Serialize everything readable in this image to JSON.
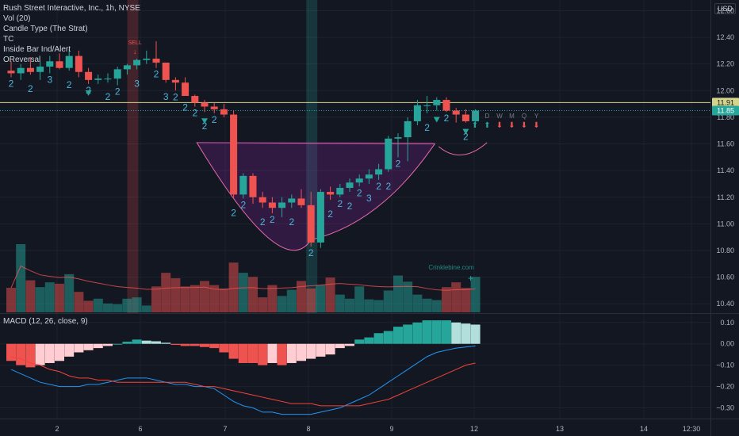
{
  "header": {
    "symbol_line": "Rush Street Interactive, Inc., 1h, NYSE",
    "indicators": [
      "Vol (20)",
      "Candle Type (The Strat)",
      "TC",
      "Inside Bar Ind/Alert",
      "OReversal"
    ],
    "currency": "USD"
  },
  "macd": {
    "label": "MACD (12, 26, close, 9)"
  },
  "watermark": "Crinklebine.com",
  "colors": {
    "bg": "#131722",
    "up": "#26a69a",
    "down": "#ef5350",
    "grid": "#1e222d",
    "resistance": "#d4d48a",
    "macd": "#2196f3",
    "signal": "#f44336"
  },
  "chart_data": [
    {
      "type": "candlestick",
      "title": "Rush Street Interactive, Inc., 1h, NYSE",
      "x_tick_labels": [
        "2",
        "6",
        "7",
        "8",
        "9",
        "12",
        "13",
        "14",
        "12:30"
      ],
      "y_ticks": [
        10.4,
        10.6,
        10.8,
        11.0,
        11.2,
        11.4,
        11.6,
        11.8,
        12.0,
        12.2,
        12.4,
        12.6
      ],
      "ylim": [
        10.33,
        12.68
      ],
      "price_labels": [
        {
          "value": 11.91,
          "label": "11.91",
          "color": "#d4d48a"
        },
        {
          "value": 11.85,
          "label": "11.85",
          "color": "#26a69a"
        }
      ],
      "candles": [
        {
          "o": 12.15,
          "h": 12.22,
          "l": 12.1,
          "c": 12.13
        },
        {
          "o": 12.13,
          "h": 12.2,
          "l": 12.08,
          "c": 12.17
        },
        {
          "o": 12.17,
          "h": 12.25,
          "l": 12.12,
          "c": 12.14
        },
        {
          "o": 12.14,
          "h": 12.22,
          "l": 12.08,
          "c": 12.18
        },
        {
          "o": 12.18,
          "h": 12.26,
          "l": 12.13,
          "c": 12.22
        },
        {
          "o": 12.22,
          "h": 12.28,
          "l": 12.16,
          "c": 12.17
        },
        {
          "o": 12.17,
          "h": 12.31,
          "l": 12.15,
          "c": 12.26
        },
        {
          "o": 12.26,
          "h": 12.3,
          "l": 12.1,
          "c": 12.14
        },
        {
          "o": 12.14,
          "h": 12.17,
          "l": 12.05,
          "c": 12.08
        },
        {
          "o": 12.08,
          "h": 12.12,
          "l": 12.05,
          "c": 12.09
        },
        {
          "o": 12.09,
          "h": 12.13,
          "l": 12.06,
          "c": 12.09
        },
        {
          "o": 12.09,
          "h": 12.18,
          "l": 12.04,
          "c": 12.16
        },
        {
          "o": 12.16,
          "h": 12.2,
          "l": 12.12,
          "c": 12.19
        },
        {
          "o": 12.19,
          "h": 12.24,
          "l": 12.16,
          "c": 12.23
        },
        {
          "o": 12.23,
          "h": 12.3,
          "l": 12.2,
          "c": 12.24
        },
        {
          "o": 12.24,
          "h": 12.37,
          "l": 12.17,
          "c": 12.21
        },
        {
          "o": 12.21,
          "h": 12.2,
          "l": 12.06,
          "c": 12.08
        },
        {
          "o": 12.08,
          "h": 12.1,
          "l": 12.0,
          "c": 12.06
        },
        {
          "o": 12.06,
          "h": 12.1,
          "l": 11.98,
          "c": 11.96
        },
        {
          "o": 11.96,
          "h": 11.97,
          "l": 11.88,
          "c": 11.91
        },
        {
          "o": 11.91,
          "h": 11.93,
          "l": 11.84,
          "c": 11.88
        },
        {
          "o": 11.88,
          "h": 11.91,
          "l": 11.83,
          "c": 11.86
        },
        {
          "o": 11.86,
          "h": 11.9,
          "l": 11.8,
          "c": 11.82
        },
        {
          "o": 11.82,
          "h": 11.85,
          "l": 11.19,
          "c": 11.22
        },
        {
          "o": 11.22,
          "h": 11.38,
          "l": 11.19,
          "c": 11.36
        },
        {
          "o": 11.36,
          "h": 11.38,
          "l": 11.15,
          "c": 11.2
        },
        {
          "o": 11.2,
          "h": 11.24,
          "l": 11.12,
          "c": 11.16
        },
        {
          "o": 11.16,
          "h": 11.2,
          "l": 11.08,
          "c": 11.12
        },
        {
          "o": 11.12,
          "h": 11.2,
          "l": 11.05,
          "c": 11.16
        },
        {
          "o": 11.16,
          "h": 11.22,
          "l": 11.12,
          "c": 11.19
        },
        {
          "o": 11.19,
          "h": 11.26,
          "l": 11.12,
          "c": 11.14
        },
        {
          "o": 11.14,
          "h": 11.24,
          "l": 10.83,
          "c": 10.86
        },
        {
          "o": 10.86,
          "h": 11.26,
          "l": 10.82,
          "c": 11.24
        },
        {
          "o": 11.24,
          "h": 11.28,
          "l": 11.18,
          "c": 11.22
        },
        {
          "o": 11.22,
          "h": 11.3,
          "l": 11.2,
          "c": 11.27
        },
        {
          "o": 11.27,
          "h": 11.34,
          "l": 11.24,
          "c": 11.31
        },
        {
          "o": 11.31,
          "h": 11.37,
          "l": 11.28,
          "c": 11.34
        },
        {
          "o": 11.34,
          "h": 11.41,
          "l": 11.3,
          "c": 11.37
        },
        {
          "o": 11.37,
          "h": 11.45,
          "l": 11.33,
          "c": 11.41
        },
        {
          "o": 11.41,
          "h": 11.66,
          "l": 11.39,
          "c": 11.64
        },
        {
          "o": 11.64,
          "h": 11.68,
          "l": 11.5,
          "c": 11.65
        },
        {
          "o": 11.65,
          "h": 11.8,
          "l": 11.47,
          "c": 11.77
        },
        {
          "o": 11.77,
          "h": 11.93,
          "l": 11.74,
          "c": 11.89
        },
        {
          "o": 11.89,
          "h": 11.96,
          "l": 11.83,
          "c": 11.89
        },
        {
          "o": 11.89,
          "h": 11.95,
          "l": 11.85,
          "c": 11.93
        },
        {
          "o": 11.93,
          "h": 11.95,
          "l": 11.84,
          "c": 11.85
        },
        {
          "o": 11.85,
          "h": 11.87,
          "l": 11.76,
          "c": 11.82
        },
        {
          "o": 11.82,
          "h": 11.86,
          "l": 11.76,
          "c": 11.77
        },
        {
          "o": 11.77,
          "h": 11.86,
          "l": 11.76,
          "c": 11.85
        }
      ],
      "volume": [
        36,
        100,
        47,
        37,
        44,
        42,
        56,
        30,
        17,
        20,
        13,
        12,
        20,
        22,
        10,
        38,
        58,
        50,
        38,
        40,
        46,
        40,
        35,
        73,
        58,
        52,
        22,
        40,
        24,
        33,
        46,
        35,
        40,
        51,
        26,
        20,
        38,
        19,
        18,
        32,
        54,
        45,
        26,
        20,
        18,
        37,
        44,
        36,
        52
      ]
    },
    {
      "type": "bar",
      "title": "MACD (12, 26, close, 9)",
      "y_ticks": [
        -0.3,
        -0.2,
        -0.1,
        0.0,
        0.1
      ],
      "ylim": [
        -0.35,
        0.14
      ],
      "histogram": [
        -0.08,
        -0.1,
        -0.11,
        -0.1,
        -0.09,
        -0.08,
        -0.06,
        -0.04,
        -0.03,
        -0.02,
        -0.01,
        0.0,
        0.01,
        0.02,
        0.015,
        0.012,
        0.005,
        -0.005,
        -0.01,
        -0.01,
        -0.015,
        -0.02,
        -0.04,
        -0.07,
        -0.09,
        -0.09,
        -0.1,
        -0.09,
        -0.1,
        -0.09,
        -0.08,
        -0.07,
        -0.06,
        -0.05,
        -0.02,
        -0.01,
        0.02,
        0.03,
        0.05,
        0.06,
        0.08,
        0.09,
        0.1,
        0.11,
        0.11,
        0.11,
        0.1,
        0.095,
        0.09
      ],
      "series": [
        {
          "name": "MACD",
          "values": [
            -0.12,
            -0.14,
            -0.16,
            -0.18,
            -0.19,
            -0.2,
            -0.2,
            -0.2,
            -0.19,
            -0.19,
            -0.18,
            -0.17,
            -0.16,
            -0.16,
            -0.16,
            -0.17,
            -0.18,
            -0.19,
            -0.19,
            -0.2,
            -0.2,
            -0.21,
            -0.24,
            -0.27,
            -0.29,
            -0.3,
            -0.32,
            -0.32,
            -0.33,
            -0.33,
            -0.33,
            -0.33,
            -0.32,
            -0.31,
            -0.3,
            -0.28,
            -0.26,
            -0.24,
            -0.21,
            -0.18,
            -0.15,
            -0.12,
            -0.09,
            -0.06,
            -0.04,
            -0.03,
            -0.02,
            -0.015,
            -0.01
          ]
        },
        {
          "name": "Signal",
          "values": [
            -0.06,
            -0.07,
            -0.09,
            -0.1,
            -0.12,
            -0.13,
            -0.15,
            -0.16,
            -0.16,
            -0.17,
            -0.17,
            -0.18,
            -0.18,
            -0.18,
            -0.18,
            -0.18,
            -0.18,
            -0.18,
            -0.18,
            -0.19,
            -0.2,
            -0.2,
            -0.21,
            -0.22,
            -0.23,
            -0.24,
            -0.25,
            -0.26,
            -0.27,
            -0.28,
            -0.28,
            -0.28,
            -0.29,
            -0.29,
            -0.29,
            -0.29,
            -0.29,
            -0.28,
            -0.27,
            -0.26,
            -0.24,
            -0.22,
            -0.2,
            -0.18,
            -0.16,
            -0.14,
            -0.12,
            -0.1,
            -0.09
          ]
        }
      ]
    }
  ],
  "annotations": {
    "strat_numbers": [
      "2",
      "2",
      "3",
      "2",
      "2",
      "2",
      "2",
      "3",
      "2",
      "3",
      "2",
      "2",
      "2",
      "2",
      "2",
      "2",
      "2",
      "2",
      "2",
      "2",
      "2",
      "2",
      "2",
      "2",
      "2",
      "3",
      "2",
      "2",
      "2",
      "2",
      "2",
      "2"
    ],
    "sell_label": "SELL",
    "timeframe_labels": [
      "H",
      "D",
      "W",
      "M",
      "Q",
      "Y"
    ],
    "pattern": "cup and handle"
  }
}
